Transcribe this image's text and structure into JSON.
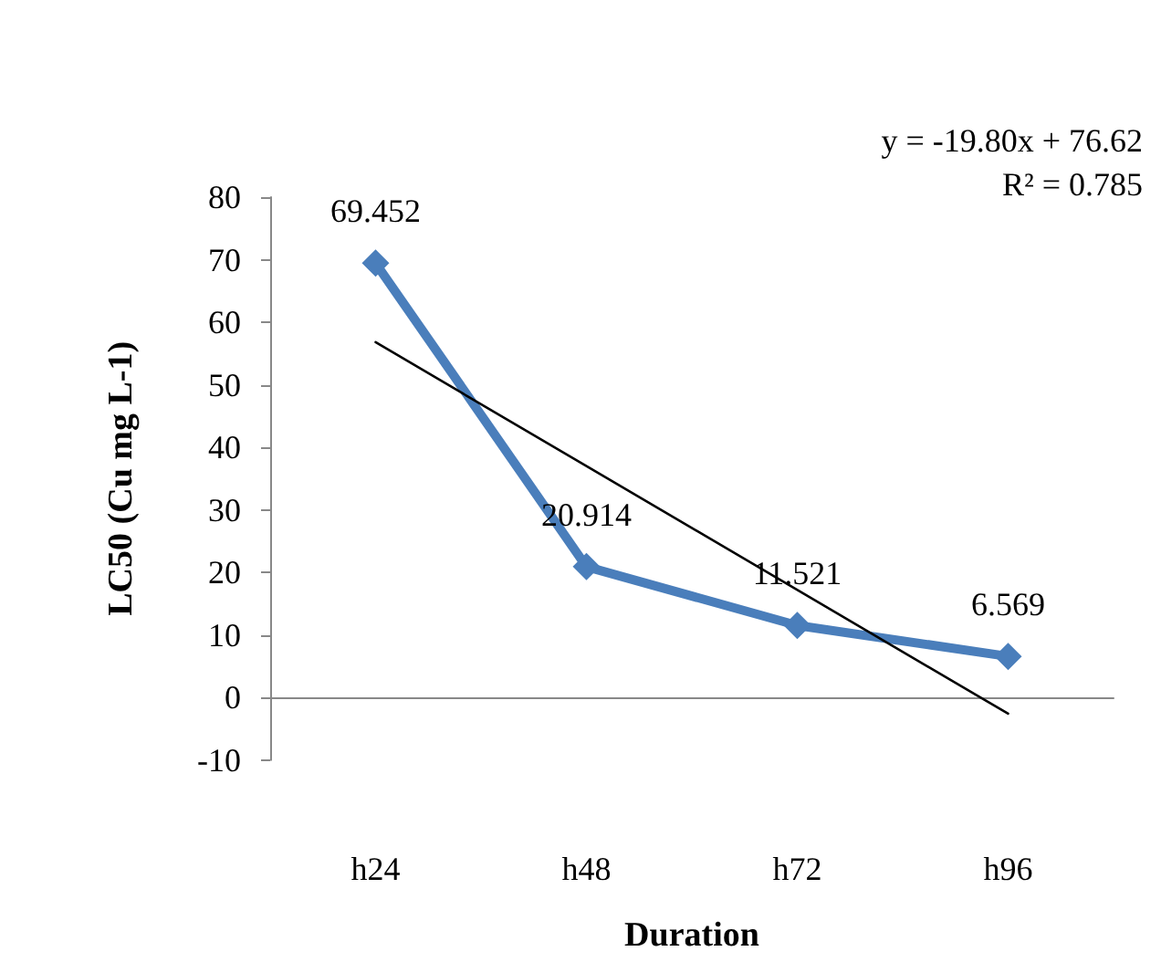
{
  "chart_data": {
    "type": "line",
    "categories": [
      "h24",
      "h48",
      "h72",
      "h96"
    ],
    "series": [
      {
        "color": "#4a7ebb",
        "values": [
          69.452,
          20.914,
          11.521,
          6.569
        ],
        "marker": "diamond",
        "value_labels": [
          "69.452",
          "20.914",
          "11.521",
          "6.569"
        ]
      },
      {
        "color": "#000000",
        "x": [
          "h24",
          "h96"
        ],
        "values": [
          56.8,
          -2.6
        ],
        "marker": "none"
      }
    ],
    "ylim": [
      -10,
      80
    ],
    "yticks": [
      -10,
      0,
      10,
      20,
      30,
      40,
      50,
      60,
      70,
      80
    ],
    "xlabel": "Duration",
    "ylabel": "LC50 (Cu mg L-1)",
    "annotations": [
      "y = -19.80x + 76.62",
      "R² = 0.785"
    ]
  }
}
